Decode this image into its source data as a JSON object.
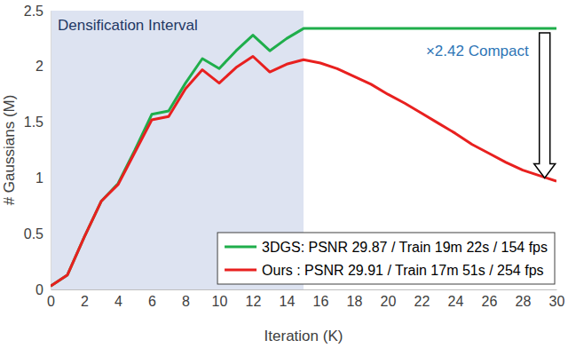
{
  "chart_data": {
    "type": "line",
    "x_label": "Iteration (K)",
    "y_label": "# Gaussians (M)",
    "x": [
      0,
      1,
      2,
      3,
      4,
      5,
      6,
      7,
      8,
      9,
      10,
      11,
      12,
      13,
      14,
      15,
      16,
      17,
      18,
      19,
      20,
      21,
      22,
      23,
      24,
      25,
      26,
      27,
      28,
      29,
      30
    ],
    "series": [
      {
        "name": "3DGS: PSNR 29.87 / Train 19m 22s / 154 fps",
        "color": "#1fae4b",
        "values": [
          0.03,
          0.13,
          0.47,
          0.79,
          0.95,
          1.25,
          1.57,
          1.6,
          1.85,
          2.07,
          1.98,
          2.14,
          2.28,
          2.14,
          2.25,
          2.34,
          2.34,
          2.34,
          2.34,
          2.34,
          2.34,
          2.34,
          2.34,
          2.34,
          2.34,
          2.34,
          2.34,
          2.34,
          2.34,
          2.34,
          2.34
        ]
      },
      {
        "name": "Ours : PSNR 29.91 / Train 17m 51s / 254 fps",
        "color": "#e8201f",
        "values": [
          0.03,
          0.13,
          0.47,
          0.79,
          0.94,
          1.23,
          1.52,
          1.55,
          1.8,
          1.97,
          1.85,
          1.99,
          2.09,
          1.95,
          2.02,
          2.06,
          2.03,
          1.98,
          1.91,
          1.84,
          1.75,
          1.67,
          1.58,
          1.49,
          1.4,
          1.3,
          1.22,
          1.14,
          1.07,
          1.02,
          0.97
        ]
      }
    ],
    "xlim": [
      0,
      30
    ],
    "xticks": [
      0,
      2,
      4,
      6,
      8,
      10,
      12,
      14,
      16,
      18,
      20,
      22,
      24,
      26,
      28,
      30
    ],
    "ylim": [
      0,
      2.5
    ],
    "yticks": [
      0,
      0.5,
      1,
      1.5,
      2,
      2.5
    ],
    "grid": false,
    "legend": "lower right",
    "annotations": [
      {
        "text": "Densification Interval",
        "x": [
          0,
          15
        ]
      },
      {
        "text": "×2.42 Compact",
        "x": 29.3,
        "y": [
          2.3,
          1.0
        ]
      }
    ]
  }
}
